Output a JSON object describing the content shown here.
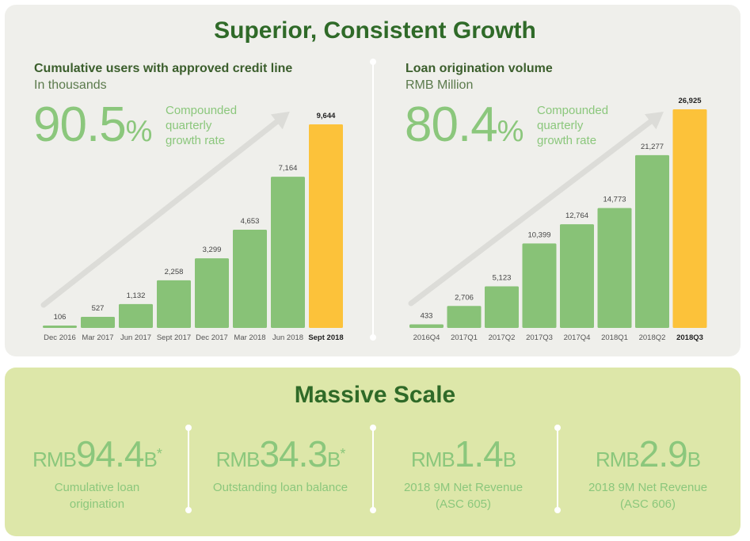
{
  "title_top": "Superior, Consistent Growth",
  "title_bottom": "Massive Scale",
  "colors": {
    "bar": "#88c277",
    "highlight": "#fcc23a",
    "accent_text": "#8bc77c",
    "title": "#2f6a28"
  },
  "chart_data": [
    {
      "type": "bar",
      "title": "Cumulative users with approved credit line",
      "subtitle": "In thousands",
      "growth": {
        "value": "90.5",
        "unit": "%",
        "line1": "Compounded",
        "line2": "quarterly",
        "line3": "growth rate"
      },
      "categories": [
        "Dec 2016",
        "Mar 2017",
        "Jun 2017",
        "Sept 2017",
        "Dec 2017",
        "Mar 2018",
        "Jun 2018",
        "Sept 2018"
      ],
      "values": [
        106,
        527,
        1132,
        2258,
        3299,
        4653,
        7164,
        9644
      ],
      "labels": [
        "106",
        "527",
        "1,132",
        "2,258",
        "3,299",
        "4,653",
        "7,164",
        "9,644"
      ],
      "highlight_index": 7,
      "ylim": [
        0,
        9644
      ]
    },
    {
      "type": "bar",
      "title": "Loan origination volume",
      "subtitle": "RMB Million",
      "growth": {
        "value": "80.4",
        "unit": "%",
        "line1": "Compounded",
        "line2": "quarterly",
        "line3": "growth rate"
      },
      "categories": [
        "2016Q4",
        "2017Q1",
        "2017Q2",
        "2017Q3",
        "2017Q4",
        "2018Q1",
        "2018Q2",
        "2018Q3"
      ],
      "values": [
        433,
        2706,
        5123,
        10399,
        12764,
        14773,
        21277,
        26925
      ],
      "labels": [
        "433",
        "2,706",
        "5,123",
        "10,399",
        "12,764",
        "14,773",
        "21,277",
        "26,925"
      ],
      "highlight_index": 7,
      "ylim": [
        0,
        26925
      ]
    }
  ],
  "stats": [
    {
      "prefix": "RMB",
      "value": "94.4",
      "suffix": "B",
      "asterisk": "*",
      "line1": "Cumulative loan",
      "line2": "origination"
    },
    {
      "prefix": "RMB",
      "value": "34.3",
      "suffix": "B",
      "asterisk": "*",
      "line1": "Outstanding loan balance",
      "line2": ""
    },
    {
      "prefix": "RMB",
      "value": "1.4",
      "suffix": "B",
      "asterisk": "",
      "line1": "2018 9M Net Revenue",
      "line2": "(ASC 605)"
    },
    {
      "prefix": "RMB",
      "value": "2.9",
      "suffix": "B",
      "asterisk": "",
      "line1": "2018 9M Net Revenue",
      "line2": "(ASC 606)"
    }
  ]
}
